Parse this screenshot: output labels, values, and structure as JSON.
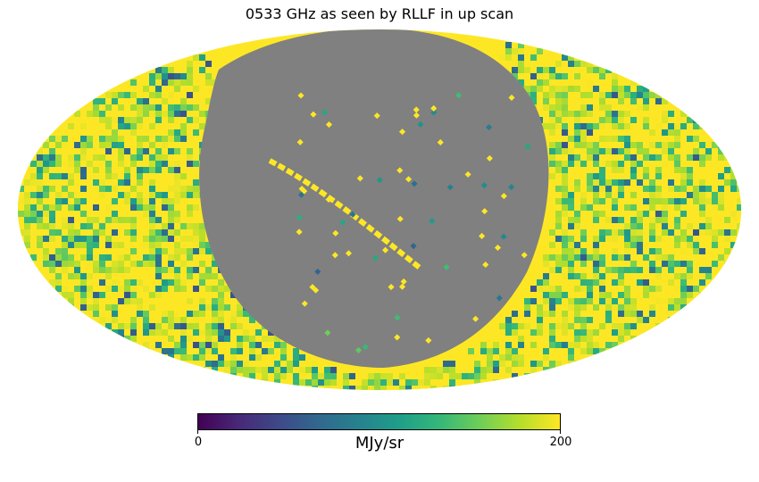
{
  "chart_data": {
    "type": "heatmap",
    "projection": "mollweide",
    "title": "0533 GHz as seen by RLLF in up scan",
    "colorbar": {
      "colormap": "viridis",
      "min": 0,
      "max": 200,
      "ticks": [
        "0",
        "200"
      ],
      "unit_label": "MJy/sr"
    },
    "unseen_color": "#808080",
    "background_color": "#ffffff"
  }
}
